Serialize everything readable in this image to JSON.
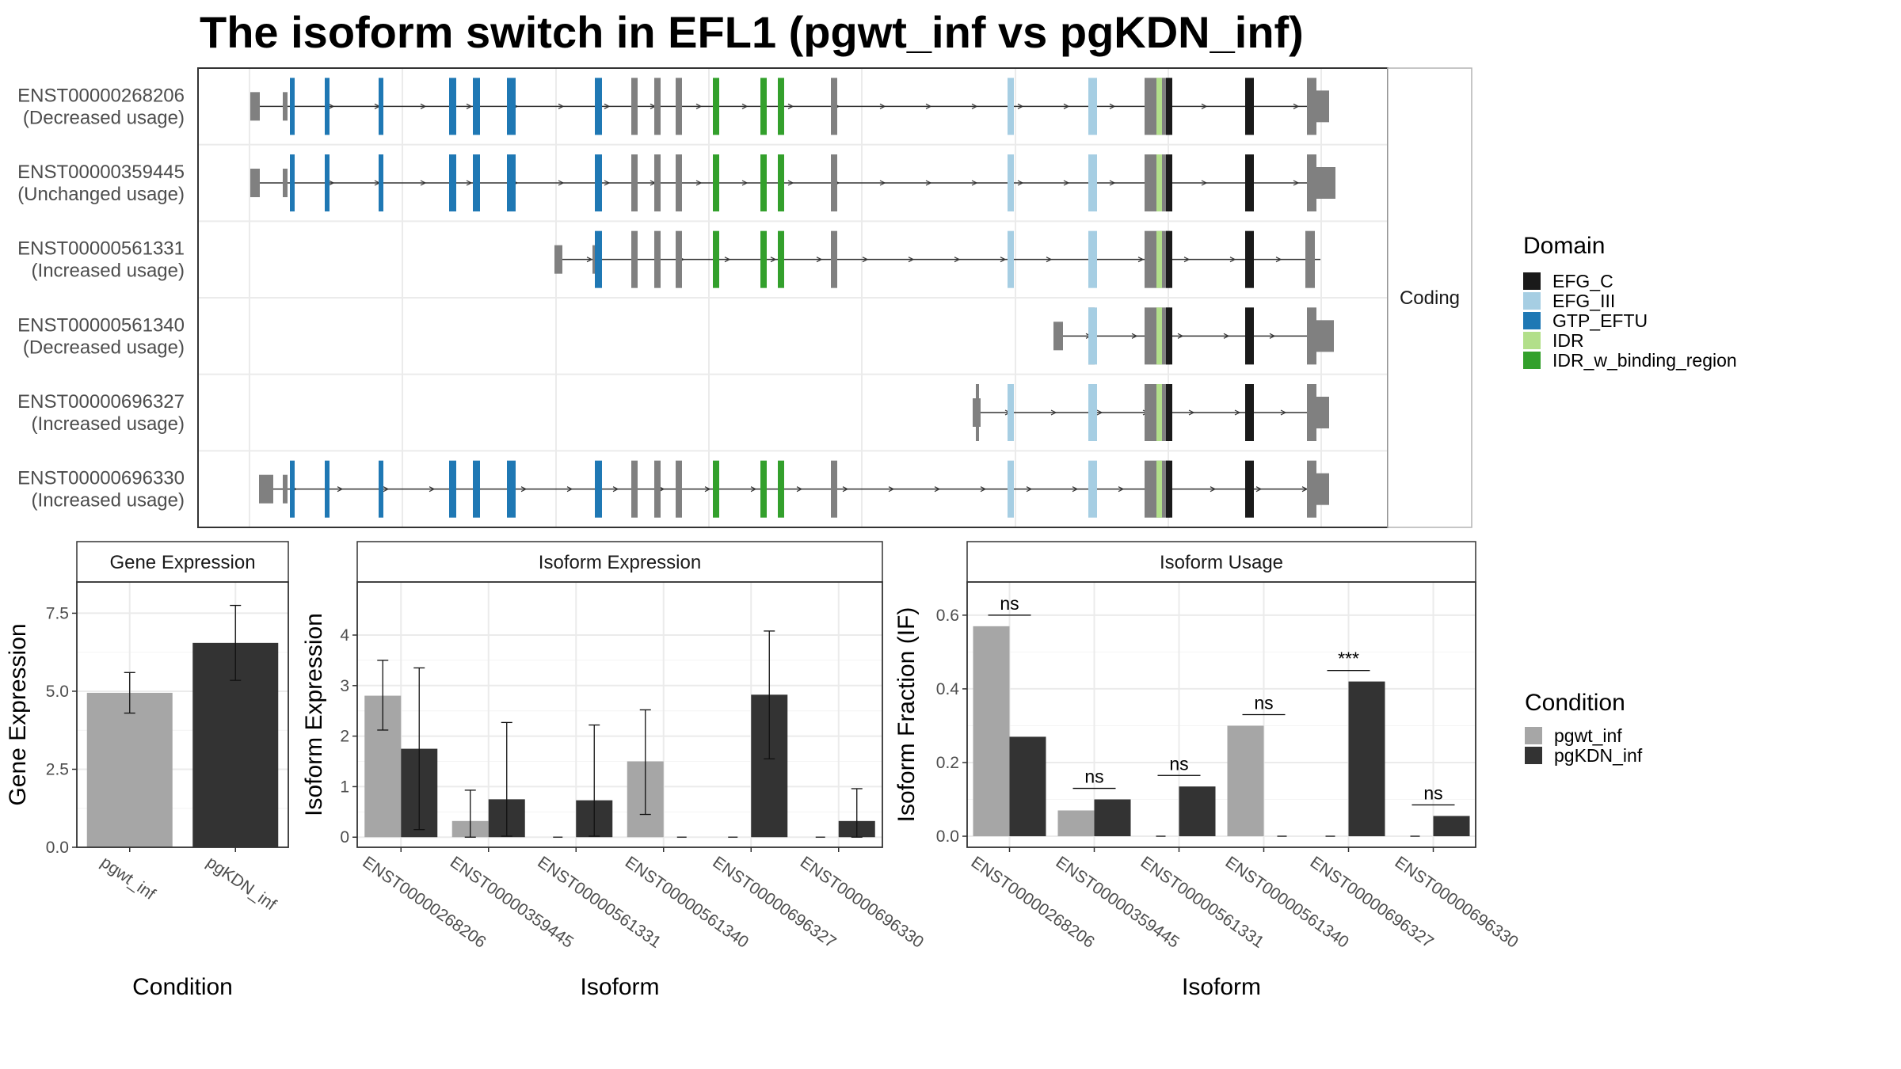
{
  "title": "The isoform switch in EFL1 (pgwt_inf vs pgKDN_inf)",
  "colors": {
    "EFG_C": "#1a1a1a",
    "EFG_III": "#a6cee3",
    "GTP_EFTU": "#1f78b4",
    "IDR": "#b2df8a",
    "IDR_w_binding_region": "#33a02c",
    "noncoding": "#808080",
    "pgwt_inf": "#a6a6a6",
    "pgKDN_inf": "#333333"
  },
  "chart_data": [
    {
      "type": "gene-structure",
      "strip_label": "Coding",
      "legend": {
        "title": "Domain",
        "items": [
          {
            "name": "EFG_C",
            "color_key": "EFG_C"
          },
          {
            "name": "EFG_III",
            "color_key": "EFG_III"
          },
          {
            "name": "GTP_EFTU",
            "color_key": "GTP_EFTU"
          },
          {
            "name": "IDR",
            "color_key": "IDR"
          },
          {
            "name": "IDR_w_binding_region",
            "color_key": "IDR_w_binding_region"
          }
        ]
      },
      "isoforms": [
        {
          "id": "ENST00000268206",
          "usage": "(Decreased usage)",
          "start": 0.0,
          "end": 1.0,
          "first_exon": 0.0,
          "last_exon_tall": true,
          "utr5": true
        },
        {
          "id": "ENST00000359445",
          "usage": "(Unchanged usage)",
          "start": 0.0,
          "end": 1.0,
          "first_exon": 0.0,
          "last_exon_tall": true,
          "utr5": true
        },
        {
          "id": "ENST00000561331",
          "usage": "(Increased usage)",
          "start": 0.35,
          "end": 0.99,
          "first_exon": 0.35,
          "last_exon_tall": false,
          "utr5": true
        },
        {
          "id": "ENST00000561340",
          "usage": "(Decreased usage)",
          "start": 0.74,
          "end": 1.0,
          "first_exon": 0.74,
          "last_exon_tall": true,
          "utr5": true
        },
        {
          "id": "ENST00000696327",
          "usage": "(Increased usage)",
          "start": 0.69,
          "end": 1.0,
          "first_exon": 0.69,
          "last_exon_tall": true,
          "utr5": true
        },
        {
          "id": "ENST00000696330",
          "usage": "(Increased usage)",
          "start": 0.01,
          "end": 1.0,
          "first_exon": 0.01,
          "last_exon_tall": true,
          "utr5": true
        }
      ]
    },
    {
      "type": "bar",
      "strip_title": "Gene Expression",
      "xlabel": "Condition",
      "ylabel": "Gene Expression",
      "categories": [
        "pgwt_inf",
        "pgKDN_inf"
      ],
      "values": [
        4.95,
        6.55
      ],
      "errors": [
        [
          4.3,
          5.6
        ],
        [
          5.35,
          7.75
        ]
      ],
      "ylim": [
        0,
        8.5
      ],
      "yticks": [
        0.0,
        2.5,
        5.0,
        7.5
      ],
      "ytick_labels": [
        "0.0",
        "2.5",
        "5.0",
        "7.5"
      ]
    },
    {
      "type": "bar",
      "strip_title": "Isoform Expression",
      "xlabel": "Isoform",
      "ylabel": "Isoform Expression",
      "categories": [
        "ENST00000268206",
        "ENST00000359445",
        "ENST00000561331",
        "ENST00000561340",
        "ENST00000696327",
        "ENST00000696330"
      ],
      "series": [
        {
          "name": "pgwt_inf",
          "values": [
            2.8,
            0.32,
            0,
            1.5,
            0,
            0
          ],
          "errors": [
            [
              2.12,
              3.5
            ],
            [
              0.0,
              0.93
            ],
            null,
            [
              0.45,
              2.52
            ],
            null,
            null
          ]
        },
        {
          "name": "pgKDN_inf",
          "values": [
            1.75,
            0.75,
            0.73,
            0,
            2.82,
            0.32
          ],
          "errors": [
            [
              0.15,
              3.35
            ],
            [
              0.02,
              2.27
            ],
            [
              0.02,
              2.22
            ],
            null,
            [
              1.55,
              4.08
            ],
            [
              0.0,
              0.96
            ]
          ]
        }
      ],
      "ylim": [
        -0.2,
        5.05
      ],
      "yticks": [
        0,
        1,
        2,
        3,
        4
      ],
      "ytick_labels": [
        "0",
        "1",
        "2",
        "3",
        "4"
      ]
    },
    {
      "type": "bar",
      "strip_title": "Isoform Usage",
      "xlabel": "Isoform",
      "ylabel": "Isoform Fraction (IF)",
      "categories": [
        "ENST00000268206",
        "ENST00000359445",
        "ENST00000561331",
        "ENST00000561340",
        "ENST00000696327",
        "ENST00000696330"
      ],
      "series": [
        {
          "name": "pgwt_inf",
          "values": [
            0.57,
            0.07,
            0,
            0.3,
            0,
            0
          ]
        },
        {
          "name": "pgKDN_inf",
          "values": [
            0.27,
            0.1,
            0.135,
            0,
            0.42,
            0.055
          ]
        }
      ],
      "significance": [
        "ns",
        "ns",
        "ns",
        "ns",
        "***",
        "ns"
      ],
      "significance_y": [
        0.6,
        0.13,
        0.165,
        0.33,
        0.45,
        0.085
      ],
      "ylim": [
        -0.03,
        0.69
      ],
      "yticks": [
        0.0,
        0.2,
        0.4,
        0.6
      ],
      "ytick_labels": [
        "0.0",
        "0.2",
        "0.4",
        "0.6"
      ]
    }
  ],
  "condition_legend": {
    "title": "Condition",
    "items": [
      {
        "name": "pgwt_inf",
        "color_key": "pgwt_inf"
      },
      {
        "name": "pgKDN_inf",
        "color_key": "pgKDN_inf"
      }
    ]
  }
}
